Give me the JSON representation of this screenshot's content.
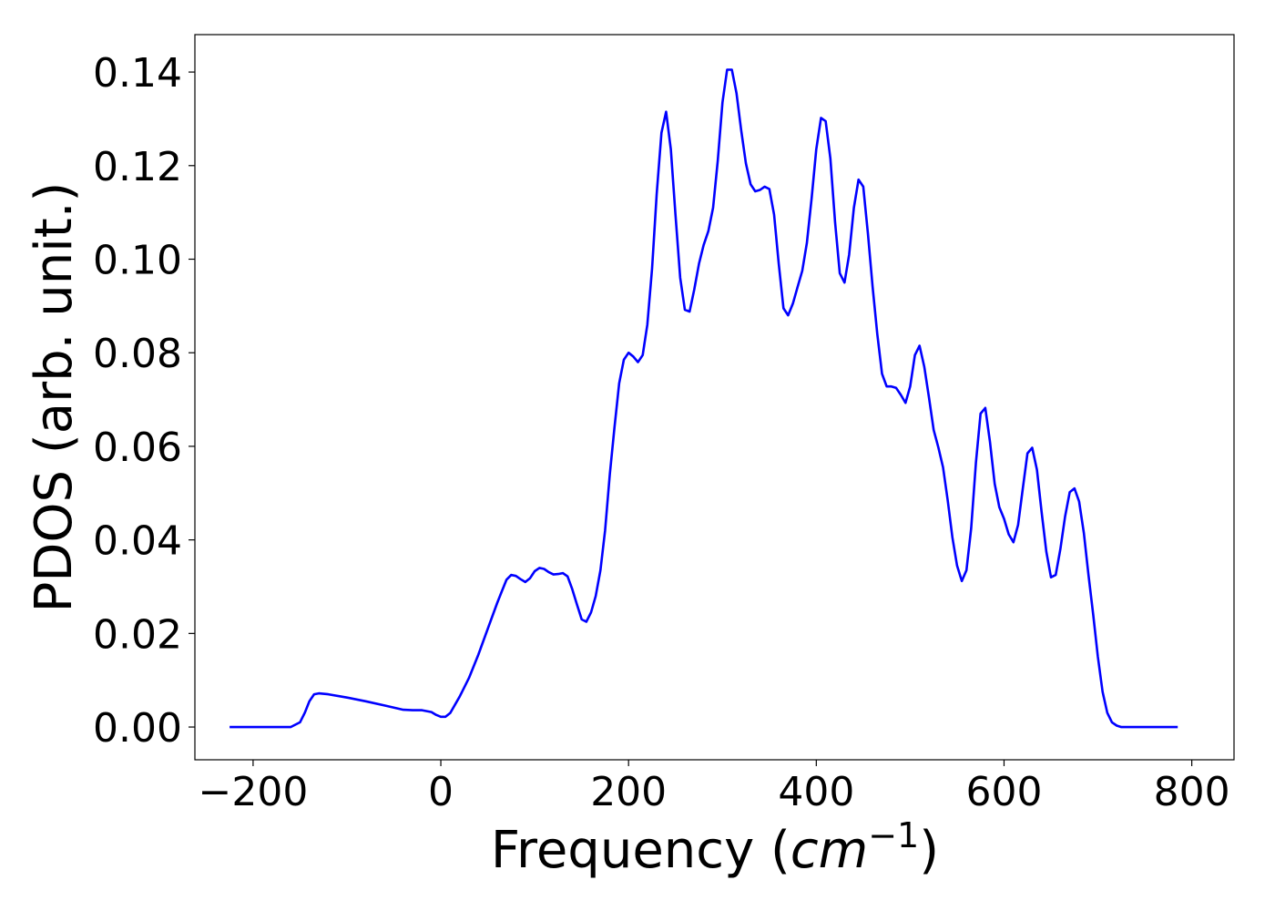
{
  "chart_data": {
    "type": "line",
    "title": "",
    "xlabel_main": "Frequency (",
    "xlabel_unit": "cm",
    "xlabel_sup": "−1",
    "xlabel_close": ")",
    "ylabel": "PDOS (arb. unit.)",
    "xlim": [
      -262,
      845
    ],
    "ylim": [
      -0.007,
      0.148
    ],
    "xticks": [
      -200,
      0,
      200,
      400,
      600,
      800
    ],
    "xtick_labels": [
      "−200",
      "0",
      "200",
      "400",
      "600",
      "800"
    ],
    "yticks": [
      0.0,
      0.02,
      0.04,
      0.06,
      0.08,
      0.1,
      0.12,
      0.14
    ],
    "ytick_labels": [
      "0.00",
      "0.02",
      "0.04",
      "0.06",
      "0.08",
      "0.10",
      "0.12",
      "0.14"
    ],
    "grid": false,
    "line_color": "#0000ff",
    "series": [
      {
        "x": [
          -225,
          -160,
          -150,
          -145,
          -140,
          -135,
          -130,
          -125,
          -120,
          -100,
          -80,
          -60,
          -40,
          -30,
          -20,
          -10,
          -5,
          0,
          5,
          10,
          20,
          30,
          40,
          50,
          60,
          65,
          70,
          75,
          80,
          85,
          90,
          95,
          100,
          105,
          110,
          115,
          120,
          125,
          130,
          135,
          140,
          145,
          150,
          155,
          160,
          165,
          170,
          175,
          180,
          185,
          190,
          195,
          200,
          205,
          210,
          215,
          220,
          225,
          230,
          235,
          240,
          245,
          250,
          255,
          260,
          265,
          270,
          275,
          280,
          285,
          290,
          295,
          300,
          305,
          310,
          315,
          320,
          325,
          330,
          335,
          340,
          345,
          350,
          355,
          360,
          365,
          370,
          375,
          380,
          385,
          390,
          395,
          400,
          405,
          410,
          415,
          420,
          425,
          430,
          435,
          440,
          445,
          450,
          455,
          460,
          465,
          470,
          475,
          480,
          485,
          490,
          495,
          500,
          505,
          510,
          515,
          520,
          525,
          530,
          535,
          540,
          545,
          550,
          555,
          560,
          565,
          570,
          575,
          580,
          585,
          590,
          595,
          600,
          605,
          610,
          615,
          620,
          625,
          630,
          635,
          640,
          645,
          650,
          655,
          660,
          665,
          670,
          675,
          680,
          685,
          690,
          695,
          700,
          705,
          710,
          715,
          720,
          725,
          730,
          785
        ],
        "y": [
          0.0,
          0.0,
          0.001,
          0.003,
          0.0055,
          0.007,
          0.0072,
          0.0071,
          0.007,
          0.0063,
          0.0055,
          0.0046,
          0.0037,
          0.0036,
          0.0036,
          0.0032,
          0.0026,
          0.0022,
          0.0022,
          0.003,
          0.0065,
          0.0105,
          0.0155,
          0.021,
          0.0265,
          0.029,
          0.0315,
          0.0325,
          0.0323,
          0.0316,
          0.031,
          0.0318,
          0.0333,
          0.034,
          0.0338,
          0.0331,
          0.0326,
          0.0327,
          0.0329,
          0.0322,
          0.0295,
          0.0262,
          0.023,
          0.0225,
          0.0245,
          0.028,
          0.0335,
          0.042,
          0.054,
          0.064,
          0.0735,
          0.0785,
          0.08,
          0.0792,
          0.078,
          0.0795,
          0.086,
          0.098,
          0.114,
          0.127,
          0.1315,
          0.1235,
          0.1095,
          0.096,
          0.0892,
          0.0888,
          0.0935,
          0.099,
          0.103,
          0.106,
          0.111,
          0.121,
          0.1335,
          0.1405,
          0.1405,
          0.1355,
          0.1275,
          0.1205,
          0.116,
          0.1145,
          0.1148,
          0.1155,
          0.115,
          0.1095,
          0.099,
          0.0895,
          0.088,
          0.0905,
          0.094,
          0.0975,
          0.1035,
          0.113,
          0.1235,
          0.1302,
          0.1295,
          0.1215,
          0.108,
          0.097,
          0.095,
          0.101,
          0.111,
          0.117,
          0.1155,
          0.1055,
          0.094,
          0.084,
          0.0755,
          0.0728,
          0.0728,
          0.0725,
          0.071,
          0.0693,
          0.0728,
          0.0795,
          0.0815,
          0.077,
          0.0705,
          0.0635,
          0.0598,
          0.0555,
          0.0485,
          0.0405,
          0.0345,
          0.0312,
          0.0335,
          0.0425,
          0.0565,
          0.067,
          0.0682,
          0.061,
          0.052,
          0.047,
          0.0445,
          0.0412,
          0.0395,
          0.0432,
          0.051,
          0.0585,
          0.0597,
          0.055,
          0.046,
          0.0375,
          0.032,
          0.0325,
          0.038,
          0.045,
          0.0502,
          0.051,
          0.0482,
          0.0415,
          0.0325,
          0.024,
          0.015,
          0.0075,
          0.003,
          0.001,
          0.0003,
          0.0,
          0.0,
          0.0
        ]
      }
    ]
  }
}
